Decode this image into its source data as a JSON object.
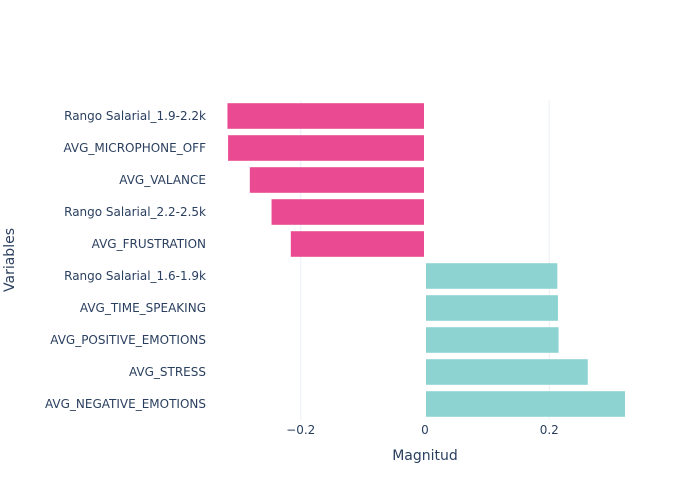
{
  "chart_data": {
    "type": "bar",
    "orientation": "horizontal",
    "title": "",
    "xlabel": "Magnitud",
    "ylabel": "Variables",
    "xlim": [
      -0.33,
      0.33
    ],
    "x_ticks": [
      {
        "value": -0.2,
        "label": "−0.2"
      },
      {
        "value": 0,
        "label": "0"
      },
      {
        "value": 0.2,
        "label": "0.2"
      }
    ],
    "grid": true,
    "legend": "none",
    "colors": {
      "negative": "#ea4a91",
      "positive": "#8dd3d2"
    },
    "categories": [
      "Rango Salarial_1.9-2.2k",
      "AVG_MICROPHONE_OFF",
      "AVG_VALANCE",
      "Rango Salarial_2.2-2.5k",
      "AVG_FRUSTRATION",
      "Rango Salarial_1.6-1.9k",
      "AVG_TIME_SPEAKING",
      "AVG_POSITIVE_EMOTIONS",
      "AVG_STRESS",
      "AVG_NEGATIVE_EMOTIONS"
    ],
    "values": [
      -0.318,
      -0.317,
      -0.282,
      -0.247,
      -0.216,
      0.213,
      0.214,
      0.215,
      0.262,
      0.322
    ]
  }
}
